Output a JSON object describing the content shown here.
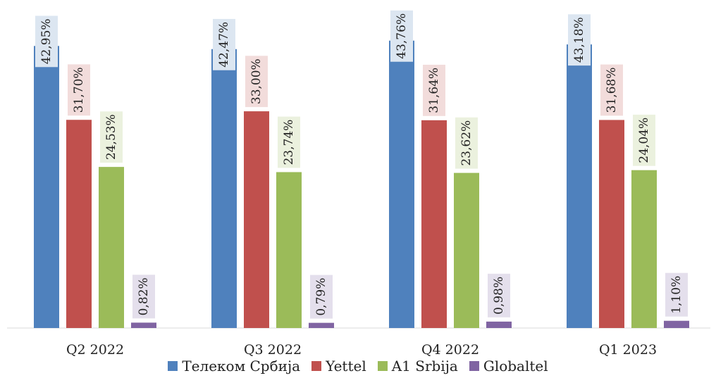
{
  "chart_data": {
    "type": "bar",
    "categories": [
      "Q2 2022",
      "Q3 2022",
      "Q4 2022",
      "Q1 2023"
    ],
    "series": [
      {
        "name": "Телеком Србија",
        "color": "#4F81BD",
        "label_bg": "#DCE6F1",
        "values": [
          42.95,
          42.47,
          43.76,
          43.18
        ],
        "labels": [
          "42,95%",
          "42,47%",
          "43,76%",
          "43,18%"
        ]
      },
      {
        "name": "Yettel",
        "color": "#C0504D",
        "label_bg": "#F2DCDB",
        "values": [
          31.7,
          33.0,
          31.64,
          31.68
        ],
        "labels": [
          "31,70%",
          "33,00%",
          "31,64%",
          "31,68%"
        ]
      },
      {
        "name": "A1 Srbija",
        "color": "#9BBB59",
        "label_bg": "#EBF1DE",
        "values": [
          24.53,
          23.74,
          23.62,
          24.04
        ],
        "labels": [
          "24,53%",
          "23,74%",
          "23,62%",
          "24,04%"
        ]
      },
      {
        "name": "Globaltel",
        "color": "#8064A2",
        "label_bg": "#E4DFEC",
        "values": [
          0.82,
          0.79,
          0.98,
          1.1
        ],
        "labels": [
          "0,82%",
          "0,79%",
          "0,98%",
          "1,10%"
        ]
      }
    ],
    "ylim": [
      0,
      44
    ],
    "grid": false,
    "legend_position": "bottom",
    "data_labels": "rotated-vertical"
  }
}
